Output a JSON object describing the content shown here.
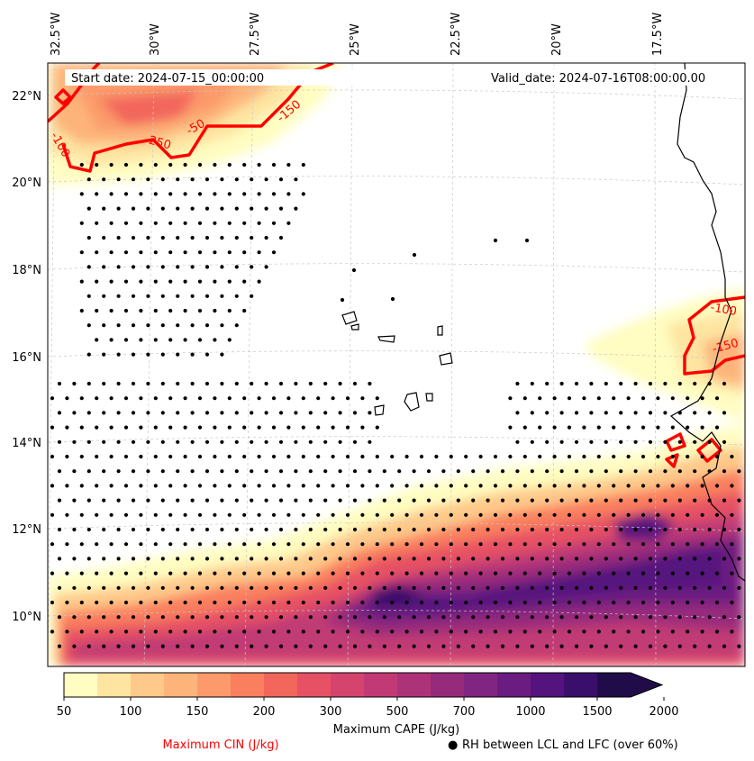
{
  "header": {
    "start_date": "Start date: 2024-07-15_00:00:00",
    "valid_date": "Valid_date: 2024-07-16T08:00:00.00"
  },
  "axes": {
    "lon_labels": [
      "32.5°W",
      "30°W",
      "27.5°W",
      "25°W",
      "22.5°W",
      "20°W",
      "17.5°W"
    ],
    "lat_labels": [
      "22°N",
      "20°N",
      "18°N",
      "16°N",
      "14°N",
      "12°N",
      "10°N"
    ]
  },
  "cin_labels": [
    "-100",
    "-250",
    "-50",
    "-150",
    "-100",
    "-150"
  ],
  "colorbar": {
    "label": "Maximum CAPE (J/kg)",
    "ticks": [
      "50",
      "100",
      "150",
      "200",
      "300",
      "500",
      "700",
      "1000",
      "1500",
      "2000"
    ],
    "colors": [
      "#fffdc1",
      "#fee4a1",
      "#fec98a",
      "#fdb47a",
      "#fc9a6b",
      "#fa7f5e",
      "#f2665c",
      "#e65164",
      "#d5446d",
      "#c13a75",
      "#ad3379",
      "#962b7c",
      "#802582",
      "#6a1c81",
      "#54137d",
      "#3a0f6b",
      "#210c4a"
    ]
  },
  "legend": {
    "cin_label": "Maximum CIN (J/kg)",
    "rh_label": "RH between LCL and LFC (over 60%)",
    "rh_marker": "●"
  }
}
